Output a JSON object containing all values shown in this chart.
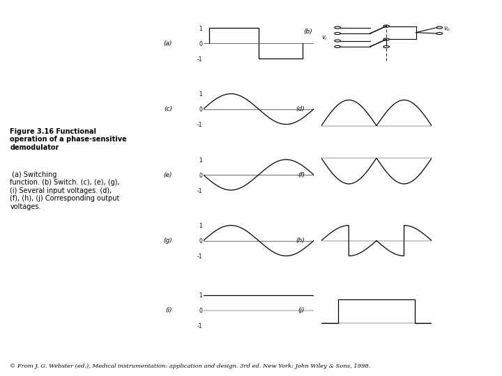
{
  "bg_color": "#ffffff",
  "fig_width": 7.2,
  "fig_height": 5.4,
  "caption_line1_bold": "Figure 3.16 Functional",
  "caption_line2_bold": "operation of a phase-sensitive",
  "caption_line3_bold": "demodulator",
  "caption_line3_normal": " (a) Switching",
  "caption_rest": "function. (b) Switch. (c), (e), (g),\n(i) Several input voltages. (d),\n(f), (h), (j) Corresponding output\nvoltages.",
  "footer": "© From J. G. Webster (ed.), Medical instrumentation: application and design. 3rd ed. New York: John Wiley & Sons, 1998.",
  "label_a": "(a)",
  "label_b": "(b)",
  "label_c": "(c)",
  "label_d": "(d)",
  "label_e": "(e)",
  "label_f": "(f)",
  "label_g": "(g)",
  "label_h": "(h)",
  "label_i": "(i)",
  "label_j": "(j)",
  "vi_label": "$v_i$",
  "vo_label": "$v_o$"
}
